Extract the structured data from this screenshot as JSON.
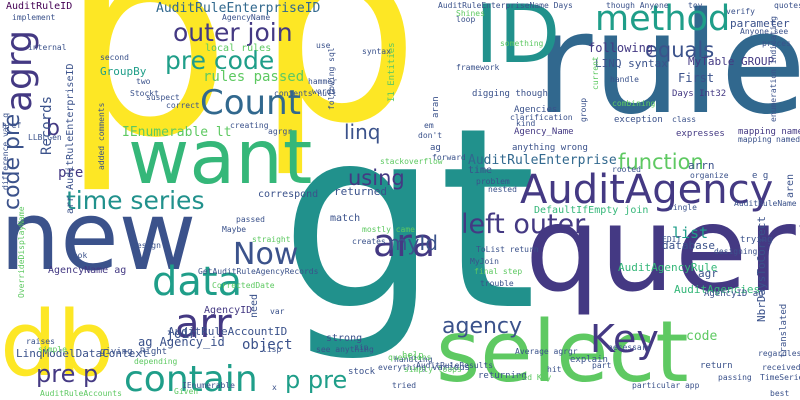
{
  "words": {
    "p": "p",
    "gt": "gt",
    "rule": "rule",
    "query": "query",
    "want": "want",
    "new": "new",
    "select": "select",
    "db": "db",
    "id": "ID",
    "method": "method",
    "audit_agency": "AuditAgency",
    "count": "Count",
    "contain": "contain",
    "agrg": "agrg",
    "data": "data",
    "ara": "ara",
    "arr": "arr",
    "key": "Key",
    "now": "Now",
    "left_outer": "left outer",
    "outer_join": "outer join",
    "pre_code": "pre code",
    "time_series": "time series",
    "equals": "equals",
    "function": "function",
    "using": "using",
    "agency": "agency",
    "linq": "linq",
    "my_id": "myId",
    "pre_p": "pre p",
    "p_pre": "p pre",
    "code_pre": "code pre",
    "audit_rule_enterprise_id": "AuditRuleEnterpriseID",
    "audit_rule_enterprise": "AuditRuleEnterprise",
    "rules_passed": "rules passed",
    "records": "Records",
    "list": "list",
    "b": "b",
    "object": "object",
    "join": "join",
    "pre": "pre",
    "code": "code",
    "audit_rule_id": "AuditRuleID",
    "arr_audit_rule_enterprise_id": "arr AuditRuleEnterpriseID",
    "ienumerable_lt": "IEnumerable lt",
    "following": "following",
    "first": "First",
    "linq_syntax": "LINQ syntax",
    "my_table_group": "MyTable GROUP",
    "audit_agency_rule": "AuditAgencyRule",
    "audit_agencies": "AuditAgencies",
    "agency_id": "AgencyID",
    "agency_name_ag": "AgencyName ag",
    "ag_agency_id": "ag Agency_id",
    "linq_model_data_context": "LinqModelDataContext",
    "audit_rule_account_id": "AuditRuleAccountID",
    "nbr_days_to_correct": "NbrDaysToCorrect",
    "parameter": "parameter",
    "returned": "returned",
    "match": "match",
    "database": "database",
    "agr": "agr",
    "group_by": "GroupBy",
    "local_rules": "local rules",
    "default_if_empty_join": "DefaultIfEmpty join",
    "correspond": "correspond",
    "mapping_named": "mapping named",
    "expresses": "expresses",
    "days_int32": "Days Int32",
    "exception": "exception",
    "arrn": "arrn",
    "e_g": "e g",
    "agencyid_ag": "AgencyID ag",
    "agencies": "Agencies",
    "agency_name": "Agency_Name",
    "anything_wrong": "anything wrong",
    "digging_though": "digging though",
    "i1_entities": "I1 Entities",
    "strong": "strong",
    "see_anything": "see anything",
    "various": "various",
    "help": "help",
    "handling": "handling",
    "everything": "everything",
    "tried": "tried",
    "returning": "returning",
    "explain": "explain",
    "part": "part",
    "hit": "hit",
    "return": "return",
    "passing": "passing",
    "received": "received",
    "regardless": "regardless",
    "best": "best",
    "translated": "translated",
    "aren": "aren",
    "trying": "trying",
    "organize": "organize",
    "designing": "designing",
    "particular_app": "particular app",
    "need": "need",
    "right": "Right",
    "giving": "giving",
    "raises": "raises",
    "simple": "simple",
    "given": "Given",
    "stock": "stock",
    "zip": "zip",
    "questions": "questions",
    "audit_rule_results": "AuditRuleResults",
    "named_key": "named Key",
    "average_agrgr": "Average agrgr",
    "necessary": "necessary",
    "kind": "kind",
    "clarification": "clarification",
    "framework": "framework",
    "syntax": "syntax",
    "loop": "loop",
    "though_anyone": "though Anyone",
    "verify": "verify",
    "anyone_see": "Anyone see",
    "toy": "toy",
    "quotes": "quotes",
    "prices": "prices",
    "enumeration_indicating": "enumeration indicating",
    "class": "class",
    "handle": "handle",
    "combining": "combining",
    "current": "current",
    "group": "group",
    "rooted": "rooted",
    "forward": "forward",
    "problem": "problem",
    "nested": "nested",
    "implement": "implement",
    "internal": "internal",
    "href": "href",
    "suspect": "suspect",
    "hammer": "hammer",
    "words": "words",
    "correct": "correct",
    "agrgr": "agrgr",
    "creating": "creating",
    "second": "second",
    "stockt": "Stockt",
    "two": "two",
    "use": "use",
    "agency_name_small": "AgencyName",
    "time": "time",
    "aran": "aran",
    "ag": "ag",
    "em": "em",
    "dont": "don't",
    "mostly_came": "mostly came",
    "creates": "creates",
    "look": "look",
    "design": "design",
    "passed": "passed",
    "straight": "straight",
    "get_audit_rule_agency_records": "GetAuditRuleAgencyRecords",
    "corrected_date": "CorrectedDate",
    "tolist_return": "ToList return",
    "myjoin": "MyJoin",
    "final_step": "final step",
    "trouble": "trouble",
    "llbl_gen": "LLBLGen",
    "ienumerable": "IEnumerable",
    "lisp": "lisp",
    "maybe": "Maybe",
    "depending": "depending",
    "x": "x",
    "audit_rule_accounts": "AuditRuleAccounts",
    "audit_rule_name": "AuditRuleName",
    "override_display_name": "OverrideDisplayName",
    "added_comments": "added comments",
    "difference_var_q": "difference var q",
    "var": "var",
    "following_sql": "following sql",
    "audit_rule_enterprise_name_days": "AuditRuleEnterpriseName Days",
    "shines": "Shines",
    "something": "something",
    "contents_null": "contents null",
    "single": "single",
    "edit": "EDIT",
    "timeseries": "TimeSeries",
    "stackoverflow": "stackoverflow",
    "mapping": "mapping",
    "named": "named",
    "simply_loops": "simply loops"
  },
  "colors": {
    "background": "#ffffff",
    "palette": [
      "#440154",
      "#3b528b",
      "#21918c",
      "#5ec962",
      "#fde725",
      "#31688e",
      "#35b779",
      "#90d743",
      "#443983",
      "#1f9e89"
    ]
  }
}
